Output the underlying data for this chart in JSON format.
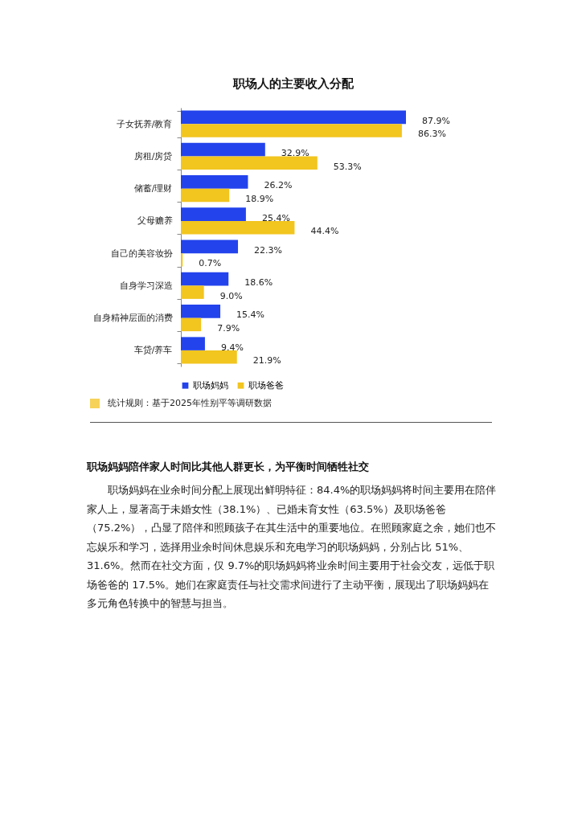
{
  "chart_data": {
    "type": "bar",
    "orientation": "horizontal",
    "title": "职场人的主要收入分配",
    "categories": [
      "子女抚养/教育",
      "房租/房贷",
      "储蓄/理财",
      "父母赡养",
      "自己的美容妆扮",
      "自身学习深造",
      "自身精神层面的消费",
      "车贷/养车"
    ],
    "series": [
      {
        "name": "职场妈妈",
        "color": "#2343ec",
        "values": [
          87.9,
          32.9,
          26.2,
          25.4,
          22.3,
          18.6,
          15.4,
          9.4
        ],
        "value_labels": [
          "87.9%",
          "32.9%",
          "26.2%",
          "25.4%",
          "22.3%",
          "18.6%",
          "15.4%",
          "9.4%"
        ]
      },
      {
        "name": "职场爸爸",
        "color": "#f2c51f",
        "values": [
          86.3,
          53.3,
          18.9,
          44.4,
          0.7,
          9.0,
          7.9,
          21.9
        ],
        "value_labels": [
          "86.3%",
          "53.3%",
          "18.9%",
          "44.4%",
          "0.7%",
          "9.0%",
          "7.9%",
          "21.9%"
        ]
      }
    ],
    "legend": "bottom",
    "grid": false,
    "annotations": [
      "统计规则：基于2025年性别平等调研数据",
      "职场妈妈陪伴家人时间比其他人群更长，为平衡时间牺牲社交",
      "职场妈妈在业余时间分配上展现出鲜明特征：84.4%的职场妈妈将时间主要用在陪伴家人上，显著高于未婚女性（38.1%）、已婚未育女性（63.5%）及职场爸爸（75.2%），凸显了陪伴和照顾孩子在其生活中的重要地位。在照顾家庭之余，她们也不忘娱乐和学习，选择用业余时间休息娱乐和充电学习的职场妈妈，分别占比 51%、31.6%。然而在社交方面，仅 9.7%的职场妈妈将业余时间主要用于社会交友，远低于职场爸爸的 17.5%。她们在家庭责任与社交需求间进行了主动平衡，展现出了职场妈妈在多元角色转换中的智慧与担当。"
    ]
  }
}
